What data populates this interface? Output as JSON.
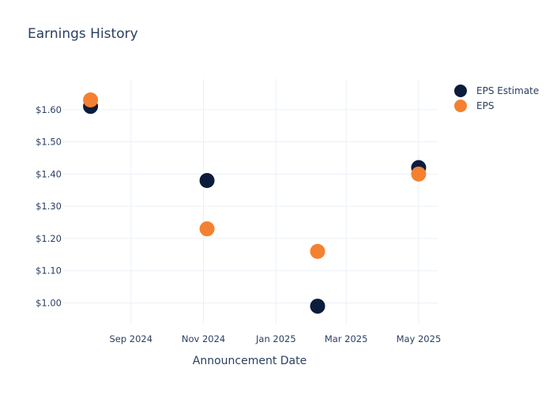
{
  "chart_data": {
    "type": "scatter",
    "title": "Earnings History",
    "xlabel": "Announcement Date",
    "ylabel": "",
    "x_axis_type": "date",
    "xlim": [
      "2024-07-06",
      "2025-05-17"
    ],
    "ylim": [
      0.935,
      1.695
    ],
    "x_ticks": [
      {
        "date": "2024-09-01",
        "label": "Sep 2024"
      },
      {
        "date": "2024-11-01",
        "label": "Nov 2024"
      },
      {
        "date": "2025-01-01",
        "label": "Jan 2025"
      },
      {
        "date": "2025-03-01",
        "label": "Mar 2025"
      },
      {
        "date": "2025-05-01",
        "label": "May 2025"
      }
    ],
    "y_ticks": [
      {
        "value": 1.0,
        "label": "$1.00"
      },
      {
        "value": 1.1,
        "label": "$1.10"
      },
      {
        "value": 1.2,
        "label": "$1.20"
      },
      {
        "value": 1.3,
        "label": "$1.30"
      },
      {
        "value": 1.4,
        "label": "$1.40"
      },
      {
        "value": 1.5,
        "label": "$1.50"
      },
      {
        "value": 1.6,
        "label": "$1.60"
      }
    ],
    "grid": true,
    "legend_position": "top-right",
    "series": [
      {
        "name": "EPS Estimate",
        "color": "#0c1c3c",
        "points": [
          {
            "x": "2024-07-29",
            "y": 1.61
          },
          {
            "x": "2024-11-04",
            "y": 1.38
          },
          {
            "x": "2025-02-05",
            "y": 0.99
          },
          {
            "x": "2025-05-01",
            "y": 1.42
          }
        ]
      },
      {
        "name": "EPS",
        "color": "#f48131",
        "points": [
          {
            "x": "2024-07-29",
            "y": 1.63
          },
          {
            "x": "2024-11-04",
            "y": 1.23
          },
          {
            "x": "2025-02-05",
            "y": 1.16
          },
          {
            "x": "2025-05-01",
            "y": 1.4
          }
        ]
      }
    ]
  }
}
